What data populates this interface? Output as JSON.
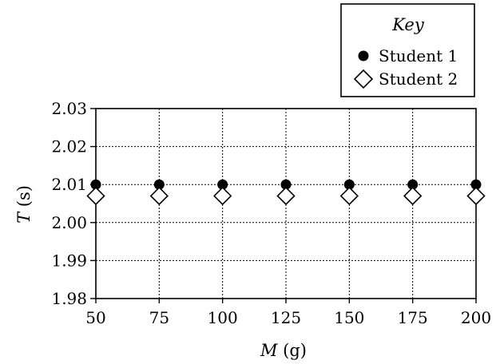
{
  "chart_data": {
    "type": "scatter",
    "x": [
      50,
      75,
      100,
      125,
      150,
      175,
      200
    ],
    "series": [
      {
        "name": "Student 1",
        "marker": "filled-circle",
        "values": [
          2.01,
          2.01,
          2.01,
          2.01,
          2.01,
          2.01,
          2.01
        ]
      },
      {
        "name": "Student 2",
        "marker": "open-diamond",
        "values": [
          2.007,
          2.007,
          2.007,
          2.007,
          2.007,
          2.007,
          2.007
        ]
      }
    ],
    "xlabel": {
      "var": "M",
      "unit": " (g)"
    },
    "ylabel": {
      "var": "T",
      "unit": " (s)"
    },
    "xlim": [
      50,
      200
    ],
    "ylim": [
      1.98,
      2.03
    ],
    "xticks": [
      "50",
      "75",
      "100",
      "125",
      "150",
      "175",
      "200"
    ],
    "yticks": [
      "1.98",
      "1.99",
      "2.00",
      "2.01",
      "2.02",
      "2.03"
    ],
    "grid": true,
    "legend": {
      "title": "Key",
      "position": "top-right, above plot"
    }
  }
}
